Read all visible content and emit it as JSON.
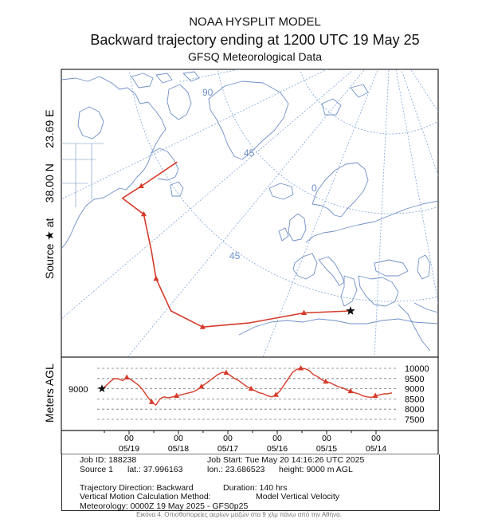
{
  "chart_data": {
    "type": "line",
    "title": "NOAA HYSPLIT MODEL",
    "subtitle": "Backward trajectory ending at 1200 UTC 19 May 25",
    "subtitle2": "GFSQ Meteorological Data",
    "source_label": "Source ★ at     38.00 N     23.69 E",
    "map": {
      "grid_labels": [
        "90",
        "45",
        "0",
        "45"
      ],
      "trajectory": [
        {
          "lon": 23.69,
          "lat": 38.0
        },
        {
          "lon": 8.0,
          "lat": 37.5
        },
        {
          "lon": -10.0,
          "lat": 35.0
        },
        {
          "lon": -25.0,
          "lat": 34.0
        },
        {
          "lon": -37.0,
          "lat": 38.0
        },
        {
          "lon": -46.0,
          "lat": 46.0
        },
        {
          "lon": -52.0,
          "lat": 53.0
        },
        {
          "lon": -62.0,
          "lat": 62.0
        },
        {
          "lon": -75.0,
          "lat": 66.0
        },
        {
          "lon": -70.0,
          "lat": 69.0
        },
        {
          "lon": -60.0,
          "lat": 75.0
        }
      ]
    },
    "vertical": {
      "ylabel": "Meters AGL",
      "source_height_label": "9000",
      "ylim": [
        7500,
        10000
      ],
      "yticks": [
        "10000",
        "9500",
        "9000",
        "8500",
        "8000",
        "7500"
      ],
      "x_hours_back": [
        0,
        2,
        4,
        6,
        8,
        10,
        12,
        14,
        16,
        18,
        20,
        22,
        24,
        26,
        28,
        30,
        32,
        34,
        36,
        38,
        40,
        42,
        44,
        46,
        48,
        50,
        52,
        54,
        56,
        58,
        60,
        62,
        64,
        66,
        68,
        70,
        72,
        74,
        76,
        78,
        80,
        82,
        84,
        86,
        88,
        90,
        92,
        94,
        96,
        98,
        100,
        102,
        104,
        106,
        108,
        110,
        112,
        114,
        116,
        118,
        120,
        122,
        124,
        126,
        128,
        130,
        132,
        134,
        136,
        138,
        140
      ],
      "heights": [
        9000,
        9150,
        9350,
        9500,
        9480,
        9400,
        9550,
        9450,
        9300,
        9150,
        8900,
        8600,
        8350,
        8200,
        8500,
        8600,
        8550,
        8600,
        8650,
        8700,
        8750,
        8800,
        8850,
        8950,
        9100,
        9250,
        9400,
        9550,
        9700,
        9800,
        9780,
        9650,
        9500,
        9400,
        9250,
        9100,
        9000,
        8900,
        8800,
        8750,
        8650,
        8600,
        8700,
        8900,
        9200,
        9500,
        9800,
        9950,
        10000,
        9980,
        9900,
        9700,
        9600,
        9450,
        9350,
        9300,
        9200,
        9100,
        9050,
        8950,
        8880,
        8800,
        8750,
        8650,
        8600,
        8580,
        8650,
        8700,
        8750,
        8750,
        8800
      ]
    },
    "time_axis": {
      "hour_label": "00",
      "dates": [
        "05/19",
        "05/18",
        "05/17",
        "05/16",
        "05/15",
        "05/14"
      ]
    }
  },
  "info": {
    "job_id": "Job ID: 188238",
    "job_start": "Job Start: Tue May 20 14:16:26 UTC 2025",
    "source": "Source 1",
    "lat": "lat.: 37.996163",
    "lon": "lon.: 23.686523",
    "height": "height: 9000 m AGL",
    "direction": "Trajectory Direction: Backward",
    "duration": "Duration: 140 hrs",
    "vertical_method": "Vertical Motion Calculation Method:",
    "vertical_value": "Model Vertical Velocity",
    "meteorology": "Meteorology: 0000Z 19 May 2025 - GFS0p25"
  },
  "caption": "Εικόνα 4. Οπισθοπορείες αερίων μαζών στα 9 χλμ πάνω από την Αθήνα.",
  "colors": {
    "trajectory": "#d63a2b",
    "coast": "#6f8fc8",
    "grid": "#7fa4d6",
    "frame": "#222222"
  }
}
